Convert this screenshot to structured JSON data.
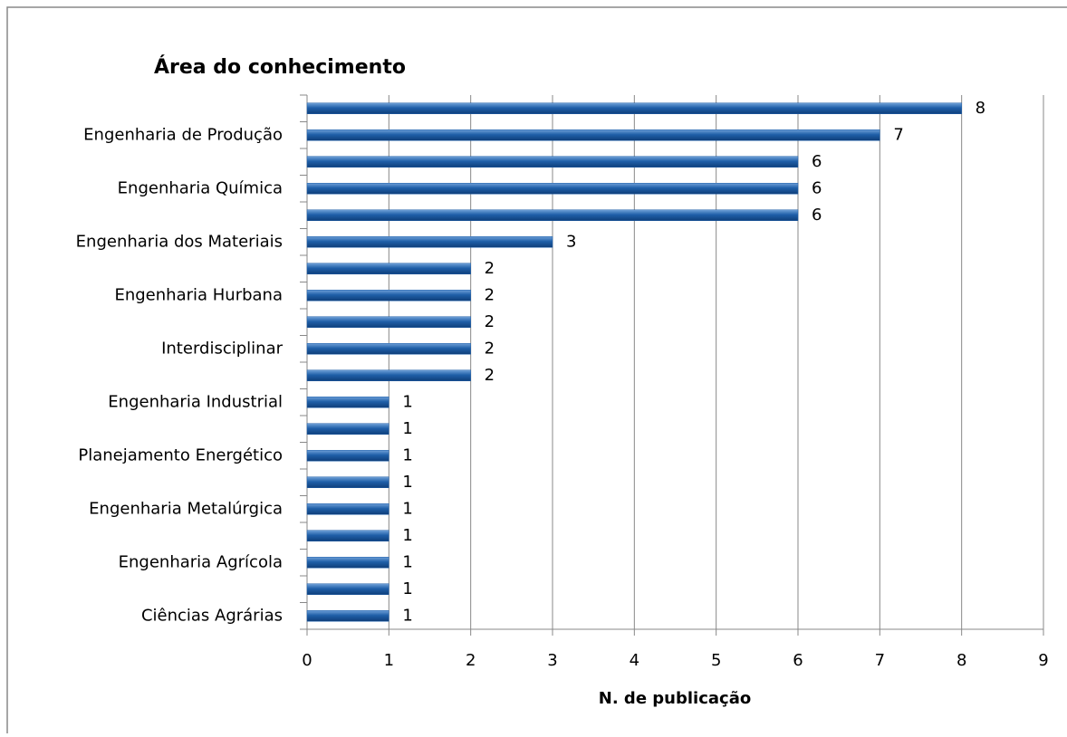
{
  "chart_data": {
    "type": "bar",
    "orientation": "horizontal",
    "title": "Área do conhecimento",
    "x_label": "N. de publicação",
    "categories": [
      null,
      "Engenharia de Produção",
      null,
      "Engenharia Química",
      null,
      "Engenharia dos Materiais",
      null,
      "Engenharia Hurbana",
      null,
      "Interdisciplinar",
      null,
      "Engenharia Industrial",
      null,
      "Planejamento Energético",
      null,
      "Engenharia Metalúrgica",
      null,
      "Engenharia Agrícola",
      null,
      "Ciências Agrárias"
    ],
    "values": [
      8,
      7,
      6,
      6,
      6,
      3,
      2,
      2,
      2,
      2,
      2,
      1,
      1,
      1,
      1,
      1,
      1,
      1,
      1,
      1
    ],
    "color": "#1f5fa8",
    "xlim": [
      0,
      9
    ],
    "xticks": [
      0,
      1,
      2,
      3,
      4,
      5,
      6,
      7,
      8,
      9
    ],
    "grid": true
  }
}
